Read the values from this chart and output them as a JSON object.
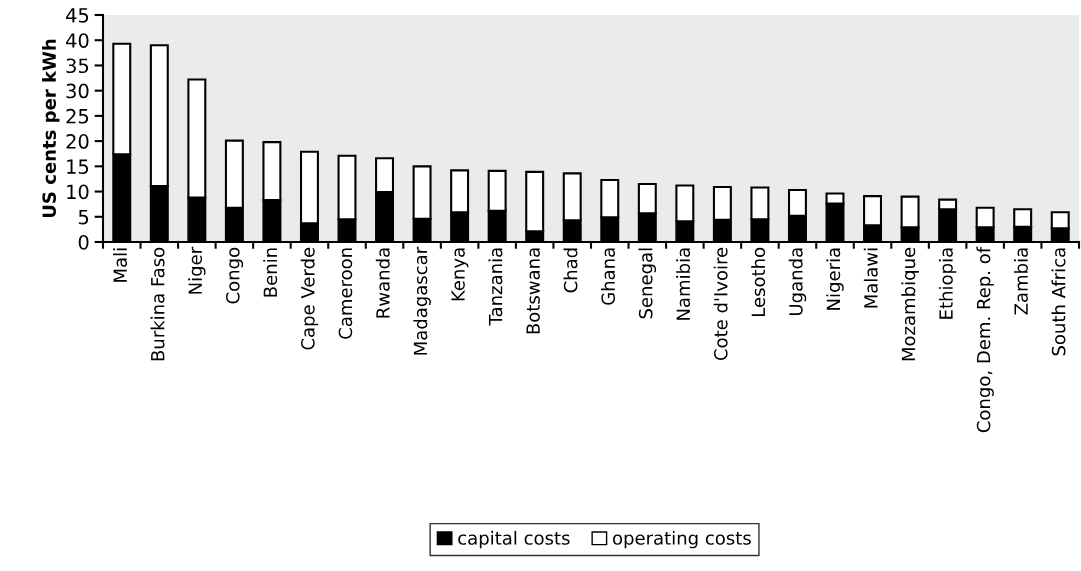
{
  "chart_data": {
    "type": "bar",
    "stacked": true,
    "ylabel": "US cents per kWh",
    "categories": [
      "Mali",
      "Burkina Faso",
      "Niger",
      "Congo",
      "Benin",
      "Cape Verde",
      "Cameroon",
      "Rwanda",
      "Madagascar",
      "Kenya",
      "Tanzania",
      "Botswana",
      "Chad",
      "Ghana",
      "Senegal",
      "Namibia",
      "Cote d'Ivoire",
      "Lesotho",
      "Uganda",
      "Nigeria",
      "Malawi",
      "Mozambique",
      "Ethiopia",
      "Congo, Dem. Rep. of",
      "Zambia",
      "South Africa"
    ],
    "series": [
      {
        "name": "capital costs",
        "color": "#000000",
        "values": [
          17.4,
          11.1,
          8.8,
          6.8,
          8.3,
          3.7,
          4.5,
          9.9,
          4.6,
          5.9,
          6.2,
          2.1,
          4.3,
          4.9,
          5.7,
          4.1,
          4.4,
          4.5,
          5.2,
          7.6,
          3.3,
          2.9,
          6.5,
          2.9,
          3.0,
          2.7
        ]
      },
      {
        "name": "operating costs",
        "color": "#ffffff",
        "values": [
          21.9,
          27.9,
          23.4,
          13.3,
          11.5,
          14.2,
          12.6,
          6.7,
          10.4,
          8.3,
          7.9,
          11.8,
          9.3,
          7.4,
          5.8,
          7.1,
          6.5,
          6.3,
          5.1,
          2.0,
          5.8,
          6.1,
          1.9,
          3.9,
          3.5,
          3.2
        ]
      }
    ],
    "ylim": [
      0,
      45
    ],
    "yticks": [
      0,
      5,
      10,
      15,
      20,
      25,
      30,
      35,
      40,
      45
    ],
    "grid": false,
    "legend": "bottom"
  }
}
